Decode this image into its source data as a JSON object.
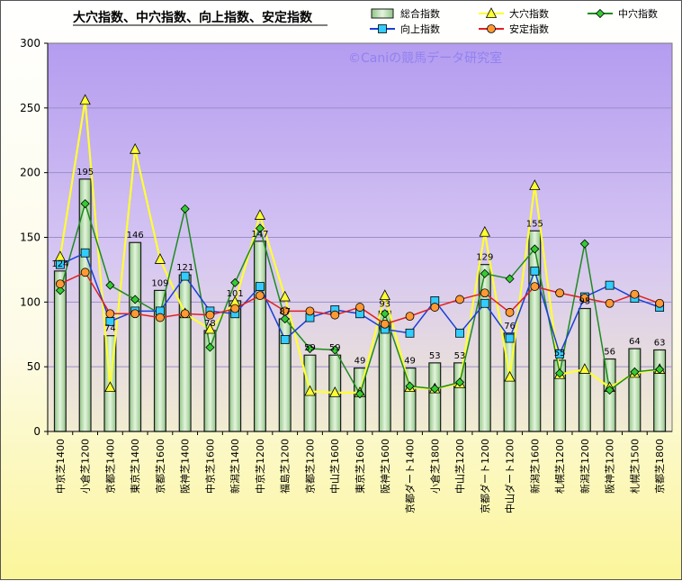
{
  "chart_data": {
    "type": "bar",
    "title": "大穴指数、中穴指数、向上指数、安定指数",
    "watermark": "©Caniの競馬データ研究室",
    "ylim": [
      0,
      300
    ],
    "yticks": [
      0,
      50,
      100,
      150,
      200,
      250,
      300
    ],
    "categories": [
      "中京芝1400",
      "小倉芝1200",
      "京都芝1400",
      "東京芝1400",
      "京都芝1600",
      "阪神芝1400",
      "中京芝1600",
      "新潟芝1400",
      "中京芝1200",
      "福島芝1200",
      "京都芝1200",
      "中山芝1600",
      "東京芝1600",
      "阪神芝1600",
      "京都ダート1400",
      "小倉芝1800",
      "中山芝1200",
      "京都ダート1200",
      "中山ダート1200",
      "新潟芝1600",
      "札幌芝1200",
      "新潟芝1200",
      "阪神芝1200",
      "札幌芝1500",
      "京都芝1800"
    ],
    "legend_position": "top",
    "series": [
      {
        "name": "総合指数",
        "kind": "bar",
        "color": "#b8dcae",
        "values": [
          124,
          195,
          74,
          146,
          109,
          121,
          78,
          101,
          147,
          87,
          59,
          59,
          49,
          93,
          49,
          53,
          53,
          129,
          76,
          155,
          55,
          95,
          56,
          64,
          63
        ],
        "labels": [
          "124",
          "195",
          "74",
          "146",
          "109",
          "121",
          "78",
          "101",
          "147",
          "87",
          "59",
          "59",
          "49",
          "93",
          "49",
          "53",
          "53",
          "129",
          "76",
          "155",
          "55",
          "95",
          "56",
          "64",
          "63"
        ]
      },
      {
        "name": "大穴指数",
        "kind": "line",
        "marker": "triangle",
        "color": "#ffff33",
        "values": [
          135,
          256,
          34,
          218,
          133,
          91,
          79,
          100,
          167,
          104,
          31,
          30,
          30,
          105,
          34,
          33,
          37,
          154,
          42,
          190,
          44,
          48,
          34,
          45,
          48
        ]
      },
      {
        "name": "中穴指数",
        "kind": "line",
        "marker": "diamond",
        "color": "#1e8b1e",
        "values": [
          109,
          176,
          113,
          102,
          91,
          172,
          65,
          115,
          157,
          87,
          64,
          63,
          29,
          91,
          35,
          33,
          38,
          122,
          118,
          141,
          45,
          145,
          32,
          46,
          48
        ]
      },
      {
        "name": "向上指数",
        "kind": "line",
        "marker": "square",
        "color": "#1a3fd8",
        "values": [
          129,
          138,
          85,
          93,
          93,
          120,
          93,
          91,
          112,
          71,
          88,
          94,
          91,
          79,
          76,
          101,
          76,
          99,
          72,
          124,
          60,
          104,
          113,
          103,
          96
        ]
      },
      {
        "name": "安定指数",
        "kind": "line",
        "marker": "circle",
        "color": "#e02020",
        "values": [
          114,
          123,
          91,
          91,
          88,
          91,
          90,
          95,
          105,
          93,
          93,
          90,
          96,
          83,
          89,
          96,
          102,
          107,
          92,
          112,
          107,
          103,
          99,
          106,
          99
        ]
      }
    ]
  }
}
